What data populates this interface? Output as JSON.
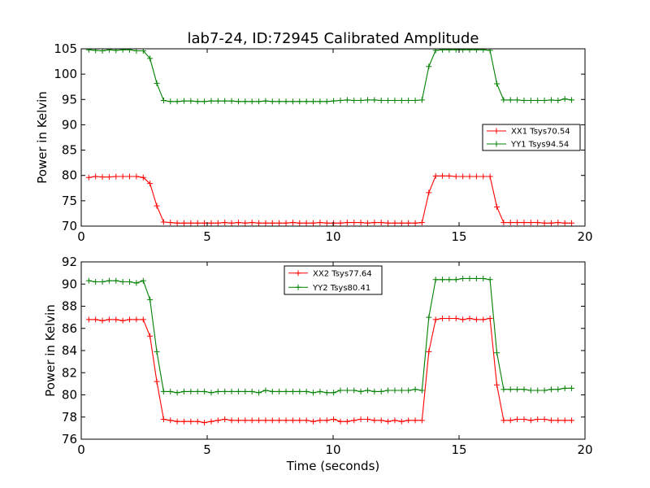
{
  "chart_data": [
    {
      "type": "line",
      "title": "lab7-24, ID:72945 Calibrated Amplitude",
      "xlabel": "",
      "ylabel": "Power in Kelvin",
      "xlim": [
        0,
        20
      ],
      "ylim": [
        70,
        105
      ],
      "xticks": [
        0,
        5,
        10,
        15,
        20
      ],
      "yticks": [
        70,
        75,
        80,
        85,
        90,
        95,
        100,
        105
      ],
      "grid": false,
      "legend_position": "center-right",
      "x": [
        0.3,
        0.57,
        0.84,
        1.11,
        1.38,
        1.65,
        1.92,
        2.19,
        2.46,
        2.73,
        3.0,
        3.27,
        3.54,
        3.81,
        4.08,
        4.35,
        4.62,
        4.89,
        5.16,
        5.43,
        5.7,
        5.97,
        6.24,
        6.51,
        6.78,
        7.05,
        7.32,
        7.59,
        7.86,
        8.13,
        8.4,
        8.67,
        8.94,
        9.21,
        9.48,
        9.75,
        10.02,
        10.29,
        10.56,
        10.83,
        11.1,
        11.37,
        11.64,
        11.91,
        12.18,
        12.45,
        12.72,
        12.99,
        13.26,
        13.53,
        13.8,
        14.07,
        14.34,
        14.61,
        14.88,
        15.15,
        15.42,
        15.69,
        15.96,
        16.23,
        16.5,
        16.77,
        17.04,
        17.31,
        17.58,
        17.85,
        18.12,
        18.39,
        18.66,
        18.93,
        19.2,
        19.47
      ],
      "series": [
        {
          "name": "XX1 Tsys70.54",
          "color": "#ff0000",
          "values": [
            79.6,
            79.8,
            79.7,
            79.7,
            79.8,
            79.8,
            79.8,
            79.8,
            79.6,
            78.4,
            74.0,
            70.8,
            70.7,
            70.6,
            70.6,
            70.6,
            70.6,
            70.6,
            70.6,
            70.6,
            70.7,
            70.6,
            70.7,
            70.6,
            70.7,
            70.6,
            70.6,
            70.6,
            70.6,
            70.6,
            70.7,
            70.6,
            70.6,
            70.6,
            70.7,
            70.6,
            70.6,
            70.6,
            70.7,
            70.7,
            70.7,
            70.6,
            70.7,
            70.7,
            70.6,
            70.6,
            70.6,
            70.6,
            70.6,
            70.7,
            76.6,
            79.9,
            79.9,
            79.9,
            79.8,
            79.8,
            79.8,
            79.8,
            79.8,
            79.8,
            73.8,
            70.7,
            70.7,
            70.7,
            70.7,
            70.7,
            70.7,
            70.6,
            70.6,
            70.7,
            70.6,
            70.6
          ]
        },
        {
          "name": "YY1 Tsys94.54",
          "color": "#008000",
          "values": [
            104.8,
            104.7,
            104.6,
            104.8,
            104.7,
            104.8,
            104.8,
            104.6,
            104.6,
            103.1,
            98.2,
            94.8,
            94.6,
            94.6,
            94.7,
            94.7,
            94.6,
            94.6,
            94.7,
            94.7,
            94.7,
            94.7,
            94.6,
            94.6,
            94.6,
            94.6,
            94.7,
            94.6,
            94.6,
            94.6,
            94.6,
            94.6,
            94.6,
            94.6,
            94.6,
            94.6,
            94.7,
            94.8,
            94.9,
            94.8,
            94.8,
            94.9,
            94.9,
            94.8,
            94.8,
            94.8,
            94.8,
            94.8,
            94.8,
            94.9,
            101.5,
            104.7,
            104.8,
            104.8,
            104.8,
            104.8,
            104.8,
            104.8,
            104.8,
            104.7,
            98.1,
            94.9,
            94.9,
            94.9,
            94.8,
            94.8,
            94.8,
            94.8,
            94.9,
            94.8,
            95.1,
            94.9
          ]
        }
      ]
    },
    {
      "type": "line",
      "title": "",
      "xlabel": "Time (seconds)",
      "ylabel": "Power in Kelvin",
      "xlim": [
        0,
        20
      ],
      "ylim": [
        76,
        92
      ],
      "xticks": [
        0,
        5,
        10,
        15,
        20
      ],
      "yticks": [
        76,
        78,
        80,
        82,
        84,
        86,
        88,
        90,
        92
      ],
      "grid": false,
      "legend_position": "top-center",
      "x": [
        0.3,
        0.57,
        0.84,
        1.11,
        1.38,
        1.65,
        1.92,
        2.19,
        2.46,
        2.73,
        3.0,
        3.27,
        3.54,
        3.81,
        4.08,
        4.35,
        4.62,
        4.89,
        5.16,
        5.43,
        5.7,
        5.97,
        6.24,
        6.51,
        6.78,
        7.05,
        7.32,
        7.59,
        7.86,
        8.13,
        8.4,
        8.67,
        8.94,
        9.21,
        9.48,
        9.75,
        10.02,
        10.29,
        10.56,
        10.83,
        11.1,
        11.37,
        11.64,
        11.91,
        12.18,
        12.45,
        12.72,
        12.99,
        13.26,
        13.53,
        13.8,
        14.07,
        14.34,
        14.61,
        14.88,
        15.15,
        15.42,
        15.69,
        15.96,
        16.23,
        16.5,
        16.77,
        17.04,
        17.31,
        17.58,
        17.85,
        18.12,
        18.39,
        18.66,
        18.93,
        19.2,
        19.47
      ],
      "series": [
        {
          "name": "XX2 Tsys77.64",
          "color": "#ff0000",
          "values": [
            86.8,
            86.8,
            86.7,
            86.8,
            86.8,
            86.7,
            86.8,
            86.8,
            86.8,
            85.3,
            81.2,
            77.8,
            77.7,
            77.6,
            77.6,
            77.6,
            77.6,
            77.5,
            77.6,
            77.7,
            77.8,
            77.7,
            77.7,
            77.7,
            77.7,
            77.7,
            77.7,
            77.7,
            77.7,
            77.7,
            77.7,
            77.7,
            77.7,
            77.6,
            77.7,
            77.7,
            77.8,
            77.6,
            77.6,
            77.7,
            77.8,
            77.8,
            77.7,
            77.7,
            77.6,
            77.7,
            77.6,
            77.7,
            77.7,
            77.7,
            83.9,
            86.8,
            86.9,
            86.9,
            86.9,
            86.8,
            86.9,
            86.8,
            86.8,
            86.9,
            80.9,
            77.7,
            77.7,
            77.8,
            77.8,
            77.7,
            77.8,
            77.8,
            77.7,
            77.7,
            77.7,
            77.7
          ]
        },
        {
          "name": "YY2 Tsys80.41",
          "color": "#008000",
          "values": [
            90.3,
            90.2,
            90.2,
            90.3,
            90.3,
            90.2,
            90.2,
            90.1,
            90.3,
            88.6,
            83.9,
            80.3,
            80.3,
            80.2,
            80.3,
            80.3,
            80.3,
            80.3,
            80.2,
            80.3,
            80.3,
            80.3,
            80.3,
            80.3,
            80.3,
            80.2,
            80.4,
            80.3,
            80.3,
            80.3,
            80.3,
            80.3,
            80.3,
            80.2,
            80.3,
            80.2,
            80.2,
            80.4,
            80.4,
            80.4,
            80.3,
            80.4,
            80.3,
            80.3,
            80.4,
            80.4,
            80.4,
            80.4,
            80.5,
            80.4,
            87.0,
            90.4,
            90.4,
            90.4,
            90.4,
            90.5,
            90.5,
            90.5,
            90.5,
            90.4,
            83.8,
            80.5,
            80.5,
            80.5,
            80.5,
            80.4,
            80.4,
            80.4,
            80.5,
            80.5,
            80.6,
            80.6
          ]
        }
      ]
    }
  ]
}
